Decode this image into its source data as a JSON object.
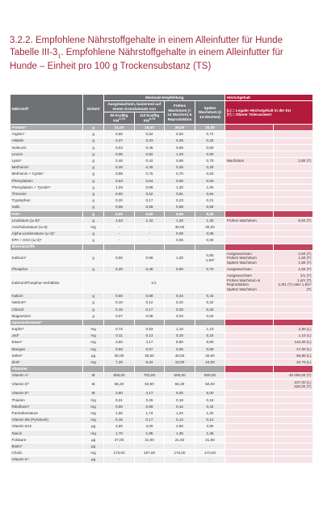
{
  "header": {
    "section_title": "3.2.2.  Empfohlene Nährstoffgehalte in einem Alleinfutter für Hunde",
    "table_label": "Tabelle III-3",
    "table_label_sub": "1",
    "table_caption": ". Empfohlene Nährstoffgehalte in einem Alleinfutter für Hunde – Einheit pro 100 g Trockensubstanz (TS)"
  },
  "table": {
    "columns": {
      "nutrient": "Nährstoff",
      "unit": "Einheit",
      "minimum": "Minimale Empfehlung",
      "maximum": "Höchstgehalt",
      "adult": "Ausgewachsen, basierend auf einem Grundumsatz von",
      "adult_95": {
        "text": "95 kcal/kg KM",
        "sup": "0,75"
      },
      "adult_110": {
        "text": "110 kcal/kg KM",
        "sup": "0,75"
      },
      "early_growth": "Frühes Wachstum (< 14 Wochen) & Reproduktion",
      "late_growth": "Spätes Wachstum (≥ 14 Wochen)",
      "max_note": [
        "(L) = Legaler Höchstgehalt in der EU",
        "(T) = Oberer Toleranzwert"
      ]
    },
    "rows": [
      {
        "section": "Protein*",
        "unit": "g",
        "values": [
          "21,00",
          "18,00",
          "25,00",
          "20,00"
        ]
      },
      {
        "name": "Arginin*",
        "unit": "g",
        "values": [
          "0,60",
          "0,52",
          "0,82",
          "0,74"
        ]
      },
      {
        "name": "Histidin",
        "unit": "g",
        "values": [
          "0,27",
          "0,23",
          "0,39",
          "0,25"
        ]
      },
      {
        "name": "Isoleucin",
        "unit": "g",
        "values": [
          "0,53",
          "0,46",
          "0,65",
          "0,50"
        ]
      },
      {
        "name": "Leucin",
        "unit": "g",
        "values": [
          "0,95",
          "0,82",
          "1,29",
          "0,80"
        ]
      },
      {
        "name": "Lysin*",
        "unit": "g",
        "values": [
          "0,46",
          "0,42",
          "0,88",
          "0,70"
        ],
        "max_label": "Wachstum",
        "max_value": "2,80 (T)"
      },
      {
        "name": "Methionin*",
        "unit": "g",
        "values": [
          "0,46",
          "0,40",
          "0,35",
          "0,26"
        ]
      },
      {
        "name": "Methionin + Cystin*",
        "unit": "g",
        "values": [
          "0,88",
          "0,76",
          "0,70",
          "0,53"
        ]
      },
      {
        "name": "Phenylalanin",
        "unit": "g",
        "values": [
          "0,63",
          "0,54",
          "0,65",
          "0,50"
        ]
      },
      {
        "name": "Phenylalanin + Tyrosin*",
        "unit": "g",
        "values": [
          "1,03",
          "0,89",
          "1,30",
          "1,00"
        ]
      },
      {
        "name": "Threonin",
        "unit": "g",
        "values": [
          "0,60",
          "0,52",
          "0,81",
          "0,64"
        ]
      },
      {
        "name": "Tryptophan",
        "unit": "g",
        "values": [
          "0,20",
          "0,17",
          "0,23",
          "0,21"
        ]
      },
      {
        "name": "Valin",
        "unit": "g",
        "values": [
          "0,68",
          "0,59",
          "0,68",
          "0,56"
        ]
      },
      {
        "section": "Fett*",
        "unit": "g",
        "values": [
          "5,50",
          "5,50",
          "8,50",
          "8,50"
        ]
      },
      {
        "name": "Linolsäure (ω-6)*",
        "unit": "g",
        "values": [
          "1,53",
          "1,32",
          "1,30",
          "1,30"
        ],
        "max_label": "Frühes Wachstum",
        "max_value": "6,50 (T)"
      },
      {
        "name": "Arachidonsäure (ω-6)",
        "unit": "mg",
        "values": [
          "-",
          "-",
          "30,00",
          "30,00"
        ]
      },
      {
        "name": "Alpha-Linolensäure (ω-3)*",
        "unit": "g",
        "values": [
          "-",
          "-",
          "0,08",
          "0,08"
        ]
      },
      {
        "name": "EPA + DHA (ω-3)*",
        "unit": "g",
        "values": [
          "-",
          "-",
          "0,05",
          "0,05"
        ]
      },
      {
        "section": "Mineralstoffe"
      },
      {
        "name": "Kalzium*",
        "unit": "g",
        "values": [
          "0,50",
          "0,58",
          "1,00",
          [
            "0,80",
            "1,00²"
          ]
        ],
        "max_label": [
          "Ausgewachsen",
          "Frühes Wachstum",
          "Spätes Wachstum"
        ],
        "max_value": [
          "2,50 (T)",
          "1,60 (T)",
          "1,80 (T)"
        ]
      },
      {
        "name": "Phosphor",
        "unit": "g",
        "values": [
          "0,40",
          "0,46",
          "0,90",
          "0,70"
        ],
        "max_label": "Ausgewachsen",
        "max_value": "1,60 (T)"
      },
      {
        "name": "Kalzium/Phosphor-Verhältnis",
        "span": "1/1",
        "max_label": [
          "Ausgewachsen",
          "Frühes Wachstum & Reproduktion",
          "Spätes Wachstum"
        ],
        "max_value": [
          "2/1 (T)",
          "1,6/1 (T)",
          "1,8/1 (T) oder 1,6/1² (T)"
        ]
      },
      {
        "name": "Kalium",
        "unit": "g",
        "values": [
          "0,50",
          "0,58",
          "0,44",
          "0,44"
        ]
      },
      {
        "name": "Natrium*",
        "unit": "g",
        "values": [
          "0,10",
          "0,12",
          "0,22",
          "0,22"
        ]
      },
      {
        "name": "Chlorid",
        "unit": "g",
        "values": [
          "0,15",
          "0,17",
          "0,33",
          "0,33"
        ]
      },
      {
        "name": "Magnesium",
        "unit": "g",
        "values": [
          "0,07",
          "0,08",
          "0,04",
          "0,04"
        ]
      },
      {
        "section": "Spurenelemente*"
      },
      {
        "name": "Kupfer*",
        "unit": "mg",
        "values": [
          "0,72",
          "0,83",
          "1,10",
          "1,10"
        ],
        "max_value": "2,80 (L)"
      },
      {
        "name": "Jod*",
        "unit": "mg",
        "values": [
          "0,11",
          "0,13",
          "0,15",
          "0,15"
        ],
        "max_value": "1,10 (L)"
      },
      {
        "name": "Eisen*",
        "unit": "mg",
        "values": [
          "3,60",
          "4,17",
          "8,80",
          "8,80"
        ],
        "max_value": "142,00 (L)"
      },
      {
        "name": "Mangan",
        "unit": "mg",
        "values": [
          "0,58",
          "0,67",
          "0,56",
          "0,56"
        ],
        "max_value": "17,00 (L)"
      },
      {
        "name": "Selen*",
        "unit": "µg",
        "values": [
          "30,00",
          "35,00",
          "40,00",
          "40,00"
        ],
        "max_value": "56,80 (L)"
      },
      {
        "name": "Zink*",
        "unit": "mg",
        "values": [
          "7,20",
          "8,34",
          "10,00",
          "10,00"
        ],
        "max_value": "22,70 (L)"
      },
      {
        "section": "Vitamine"
      },
      {
        "name": "Vitamin A*",
        "unit": "IE",
        "values": [
          "606,00",
          "702,00",
          "500,00",
          "500,00"
        ],
        "max_value": "40 000,00 (T)"
      },
      {
        "name": "Vitamin D*",
        "unit": "IE",
        "values": [
          "55,20",
          "63,90",
          "55,30",
          "50,00"
        ],
        "max_value": [
          "227,00 (L)",
          "320,00 (T)"
        ]
      },
      {
        "name": "Vitamin E*",
        "unit": "IE",
        "values": [
          "3,60",
          "4,17",
          "5,00",
          "5,00"
        ]
      },
      {
        "name": "Thiamin",
        "unit": "mg",
        "values": [
          "0,21",
          "0,25",
          "0,18",
          "0,18"
        ]
      },
      {
        "name": "Riboflavin*",
        "unit": "mg",
        "values": [
          "0,60",
          "0,69",
          "0,42",
          "0,42"
        ]
      },
      {
        "name": "Pantothensäure",
        "unit": "mg",
        "values": [
          "1,50",
          "1,74",
          "1,20",
          "1,20"
        ]
      },
      {
        "name": "Vitamin B6 (Pyridoxin)",
        "unit": "mg",
        "values": [
          "0,15",
          "0,17",
          "0,12",
          "0,12"
        ]
      },
      {
        "name": "Vitamin B12",
        "unit": "µg",
        "values": [
          "3,50",
          "4,00",
          "2,80",
          "2,80"
        ]
      },
      {
        "name": "Niacin",
        "unit": "mg",
        "values": [
          "1,70",
          "1,95",
          "1,36",
          "1,36"
        ]
      },
      {
        "name": "Folsäure",
        "unit": "µg",
        "values": [
          "27,00",
          "31,00",
          "21,60",
          "21,60"
        ]
      },
      {
        "name": "Biotin*",
        "unit": "µg",
        "values": [
          "-",
          "-",
          "-",
          "-"
        ]
      },
      {
        "name": "Cholin",
        "unit": "mg",
        "values": [
          "170,00",
          "197,00",
          "170,00",
          "170,00"
        ]
      },
      {
        "name": "Vitamin K*",
        "unit": "µg",
        "values": [
          "-",
          "-",
          "-",
          "-"
        ]
      }
    ]
  }
}
